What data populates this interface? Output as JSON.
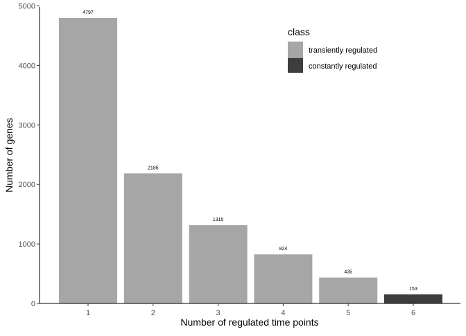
{
  "chart_data": {
    "type": "bar",
    "title": "",
    "xlabel": "Number of regulated time points",
    "ylabel": "Number of genes",
    "categories": [
      "1",
      "2",
      "3",
      "4",
      "5",
      "6"
    ],
    "values": [
      4797,
      2185,
      1315,
      824,
      435,
      153
    ],
    "bar_class": [
      "transiently regulated",
      "transiently regulated",
      "transiently regulated",
      "transiently regulated",
      "transiently regulated",
      "constantly regulated"
    ],
    "ylim": [
      0,
      5000
    ],
    "yticks": [
      0,
      1000,
      2000,
      3000,
      4000,
      5000
    ],
    "grid": false,
    "legend": {
      "title": "class",
      "placement": "top-right",
      "entries": [
        {
          "label": "transiently regulated",
          "color": "#a6a6a6"
        },
        {
          "label": "constantly regulated",
          "color": "#3d3d3d"
        }
      ]
    }
  }
}
